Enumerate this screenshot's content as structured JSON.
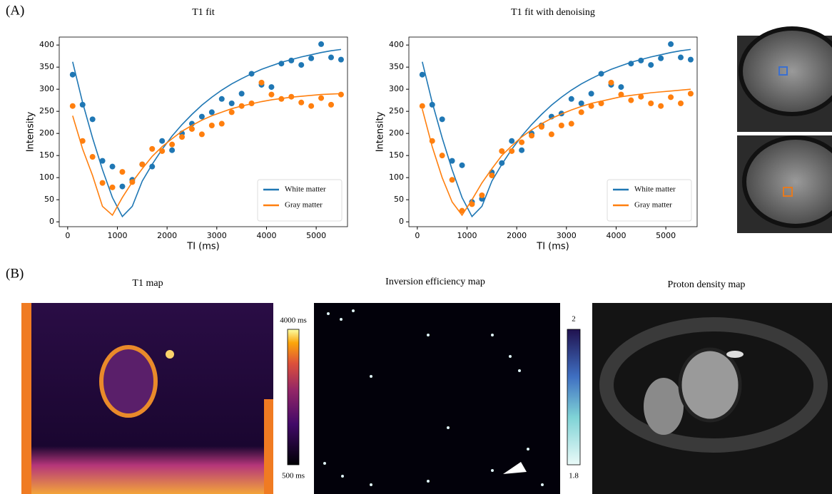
{
  "chart_data": [
    {
      "type": "scatter",
      "title": "T1 fit",
      "xlabel": "TI (ms)",
      "ylabel": "Intensity",
      "legend": "lower right",
      "x": [
        100,
        300,
        500,
        700,
        900,
        1100,
        1300,
        1500,
        1700,
        1900,
        2100,
        2300,
        2500,
        2700,
        2900,
        3100,
        3300,
        3500,
        3700,
        3900,
        4100,
        4300,
        4500,
        4700,
        4900,
        5100,
        5300,
        5500
      ],
      "xlim": [
        -170,
        5630
      ],
      "ylim": [
        -11,
        418
      ],
      "xticks": [
        0,
        1000,
        2000,
        3000,
        4000,
        5000
      ],
      "yticks": [
        0,
        50,
        100,
        150,
        200,
        250,
        300,
        350,
        400
      ],
      "series": [
        {
          "name": "White matter",
          "color": "#1f77b4",
          "values": [
            333,
            265,
            232,
            138,
            125,
            80,
            95,
            130,
            125,
            183,
            162,
            200,
            222,
            238,
            248,
            278,
            268,
            290,
            335,
            310,
            305,
            358,
            365,
            355,
            370,
            402,
            372,
            367
          ],
          "fit": [
            362,
            270,
            190,
            118,
            55,
            12,
            35,
            92,
            130,
            164,
            194,
            220,
            243,
            264,
            282,
            298,
            312,
            324,
            335,
            345,
            353,
            361,
            367,
            373,
            378,
            383,
            387,
            390
          ]
        },
        {
          "name": "Gray matter",
          "color": "#ff7f0e",
          "values": [
            262,
            183,
            147,
            88,
            78,
            113,
            90,
            130,
            165,
            160,
            175,
            192,
            210,
            198,
            218,
            222,
            248,
            262,
            268,
            315,
            288,
            278,
            283,
            270,
            262,
            280,
            265,
            288
          ],
          "fit": [
            240,
            165,
            105,
            35,
            15,
            55,
            90,
            120,
            148,
            170,
            188,
            205,
            218,
            230,
            240,
            248,
            256,
            262,
            267,
            272,
            276,
            279,
            282,
            284,
            286,
            288,
            289,
            290
          ]
        }
      ]
    },
    {
      "type": "scatter",
      "title": "T1 fit with denoising",
      "xlabel": "TI (ms)",
      "ylabel": "Intensity",
      "legend": "lower right",
      "x": [
        100,
        300,
        500,
        700,
        900,
        1100,
        1300,
        1500,
        1700,
        1900,
        2100,
        2300,
        2500,
        2700,
        2900,
        3100,
        3300,
        3500,
        3700,
        3900,
        4100,
        4300,
        4500,
        4700,
        4900,
        5100,
        5300,
        5500
      ],
      "xlim": [
        -170,
        5630
      ],
      "ylim": [
        -11,
        418
      ],
      "xticks": [
        0,
        1000,
        2000,
        3000,
        4000,
        5000
      ],
      "yticks": [
        0,
        50,
        100,
        150,
        200,
        250,
        300,
        350,
        400
      ],
      "series": [
        {
          "name": "White matter",
          "color": "#1f77b4",
          "values": [
            333,
            265,
            232,
            138,
            128,
            45,
            52,
            112,
            133,
            183,
            162,
            200,
            218,
            238,
            245,
            278,
            268,
            290,
            335,
            310,
            305,
            358,
            365,
            355,
            370,
            402,
            372,
            367
          ],
          "fit": [
            362,
            270,
            190,
            118,
            55,
            12,
            35,
            92,
            130,
            164,
            194,
            220,
            243,
            264,
            282,
            298,
            312,
            324,
            335,
            345,
            353,
            361,
            367,
            373,
            378,
            383,
            387,
            390
          ]
        },
        {
          "name": "Gray matter",
          "color": "#ff7f0e",
          "values": [
            262,
            183,
            150,
            95,
            25,
            40,
            60,
            105,
            160,
            160,
            180,
            195,
            215,
            198,
            218,
            222,
            248,
            262,
            268,
            315,
            288,
            275,
            283,
            268,
            262,
            282,
            268,
            290
          ],
          "fit": [
            255,
            170,
            100,
            45,
            15,
            50,
            88,
            120,
            150,
            172,
            192,
            208,
            222,
            234,
            244,
            253,
            261,
            268,
            273,
            278,
            283,
            286,
            289,
            292,
            294,
            296,
            298,
            300
          ]
        }
      ]
    }
  ],
  "figure": {
    "panel_a": "(A)",
    "panel_b": "(B)",
    "t1_map": {
      "title": "T1 map",
      "colorbar_max": "4000 ms",
      "colorbar_min": "500 ms"
    },
    "inversion_map": {
      "title": "Inversion efficiency map",
      "colorbar_max": "2",
      "colorbar_min": "1.8"
    },
    "proton_map": {
      "title": "Proton density map"
    }
  }
}
